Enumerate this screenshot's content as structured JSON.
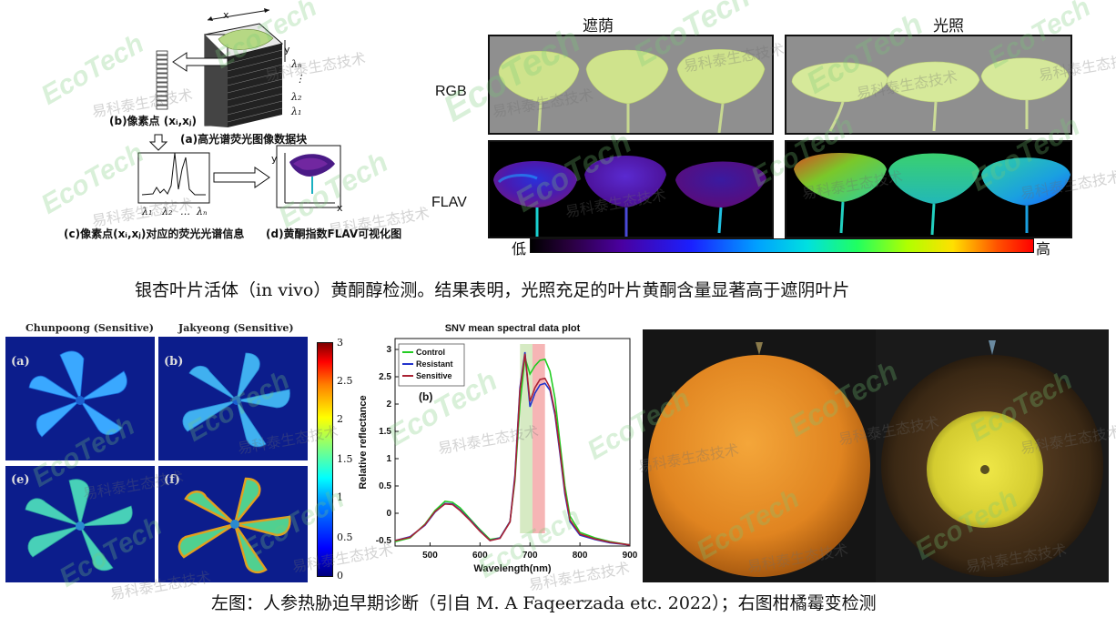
{
  "schematic": {
    "axis_x": "x",
    "axis_y": "y",
    "lambda_n": "λₙ",
    "lambda_dots": "⋮",
    "lambda_2": "λ₂",
    "lambda_1": "λ₁",
    "label_a": "(a)高光谱荧光图像数据块",
    "label_b": "(b)像素点 (xᵢ,xⱼ)",
    "label_c": "(c)像素点(xᵢ,xⱼ)对应的荧光光谱信息",
    "label_d": "(d)黄酮指数FLAV可视化图",
    "spectrum_ticks": [
      "λ₁",
      "λ₂",
      "…",
      "λₙ"
    ],
    "d_axis_x": "x",
    "d_axis_y": "y"
  },
  "leaf_panels": {
    "col_shade": "遮荫",
    "col_light": "光照",
    "row_rgb": "RGB",
    "row_flav": "FLAV",
    "colorbar_low": "低",
    "colorbar_high": "高",
    "colors": {
      "leaf_green": "#cde38a",
      "rgb_bg": "#8f8f8f"
    }
  },
  "caption_top": "银杏叶片活体（in vivo）黄酮醇检测。结果表明，光照充足的叶片黄酮含量显著高于遮阴叶片",
  "plants": {
    "title_left": "Chunpoong (Sensitive)",
    "title_right": "Jakyeong (Sensitive)",
    "letters": [
      "(a)",
      "(b)",
      "(e)",
      "(f)"
    ],
    "colorbar_ticks": [
      "3",
      "2.5",
      "2",
      "1.5",
      "1",
      "0.5",
      "0"
    ]
  },
  "chart_data": {
    "type": "line",
    "title": "SNV mean spectral data plot",
    "panel_label": "(b)",
    "xlabel": "Wavelength(nm)",
    "ylabel": "Relative reflectance",
    "xlim": [
      430,
      900
    ],
    "ylim": [
      -0.6,
      3.2
    ],
    "xticks": [
      500,
      600,
      700,
      800,
      900
    ],
    "yticks": [
      -0.5,
      0,
      0.5,
      1,
      1.5,
      2,
      2.5,
      3
    ],
    "highlight_bands": [
      {
        "from": 680,
        "to": 705,
        "color": "#cfe6b8"
      },
      {
        "from": 705,
        "to": 730,
        "color": "#f4a8a8"
      }
    ],
    "x": [
      430,
      460,
      490,
      510,
      530,
      545,
      560,
      580,
      600,
      620,
      640,
      660,
      670,
      680,
      690,
      700,
      710,
      720,
      730,
      740,
      750,
      760,
      770,
      780,
      800,
      830,
      860,
      900
    ],
    "series": [
      {
        "name": "Control",
        "color": "#22cc22",
        "values": [
          -0.52,
          -0.45,
          -0.2,
          0.05,
          0.22,
          0.2,
          0.1,
          -0.1,
          -0.3,
          -0.48,
          -0.45,
          -0.15,
          0.6,
          2.0,
          2.85,
          2.55,
          2.7,
          2.8,
          2.82,
          2.6,
          2.1,
          1.3,
          0.5,
          -0.05,
          -0.35,
          -0.45,
          -0.52,
          -0.58
        ]
      },
      {
        "name": "Resistant",
        "color": "#2233cc",
        "values": [
          -0.5,
          -0.43,
          -0.22,
          0.02,
          0.18,
          0.17,
          0.06,
          -0.12,
          -0.32,
          -0.5,
          -0.45,
          -0.15,
          0.7,
          2.3,
          2.95,
          1.95,
          2.2,
          2.35,
          2.38,
          2.25,
          1.8,
          1.1,
          0.35,
          -0.15,
          -0.4,
          -0.48,
          -0.54,
          -0.58
        ]
      },
      {
        "name": "Sensitive",
        "color": "#aa2233",
        "values": [
          -0.5,
          -0.44,
          -0.21,
          0.03,
          0.17,
          0.16,
          0.05,
          -0.13,
          -0.33,
          -0.5,
          -0.46,
          -0.16,
          0.65,
          2.25,
          2.92,
          2.05,
          2.3,
          2.45,
          2.47,
          2.3,
          1.85,
          1.15,
          0.4,
          -0.12,
          -0.38,
          -0.47,
          -0.53,
          -0.58
        ]
      }
    ]
  },
  "caption_bottom": "左图：人参热胁迫早期诊断（引自 M. A Faqeerzada etc. 2022）；右图柑橘霉变检测",
  "watermark": {
    "en": "EcoTech",
    "cn": "易科泰生态技术"
  }
}
